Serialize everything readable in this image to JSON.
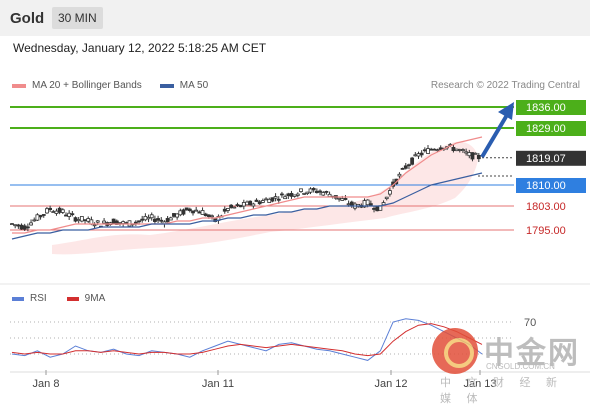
{
  "header": {
    "symbol": "Gold",
    "timeframe": "30 MIN"
  },
  "datetime": "Wednesday, January 12, 2022 5:18:25 AM CET",
  "legend": {
    "items": [
      {
        "label": "MA 20 + Bollinger Bands",
        "color": "#f08c8c"
      },
      {
        "label": "MA 50",
        "color": "#3a5fa0"
      }
    ],
    "credit": "Research © 2022 Trading Central"
  },
  "levels": [
    {
      "label": "1836.00",
      "value": 1836.0,
      "kind": "target",
      "color": "#4caf1a"
    },
    {
      "label": "1829.00",
      "value": 1829.0,
      "kind": "target",
      "color": "#4caf1a"
    },
    {
      "label": "1819.07",
      "value": 1819.07,
      "kind": "last",
      "color": "#333333"
    },
    {
      "label": "1810.00",
      "value": 1810.0,
      "kind": "pivot",
      "color": "#2f7fe0"
    },
    {
      "label": "1803.00",
      "value": 1803.0,
      "kind": "support",
      "color": "#c62828"
    },
    {
      "label": "1795.00",
      "value": 1795.0,
      "kind": "support",
      "color": "#c62828"
    }
  ],
  "rsi_legend": [
    {
      "label": "RSI",
      "color": "#5b7fd6"
    },
    {
      "label": "9MA",
      "color": "#d32f2f"
    }
  ],
  "rsi_level": "70",
  "x_ticks": [
    "Jan 8",
    "Jan 11",
    "Jan 12",
    "Jan 13"
  ],
  "watermark": {
    "cn": "中金网",
    "url": "CNGOLD.COM.CN",
    "sub": "中 文 财 经 新 媒 体"
  },
  "chart_data": {
    "type": "line",
    "series": [
      {
        "name": "MA 20 + Bollinger Bands",
        "values": [
          1794,
          1794,
          1795,
          1795,
          1796,
          1797,
          1797,
          1797,
          1797,
          1797,
          1797,
          1797,
          1797,
          1798,
          1798,
          1799,
          1799,
          1800,
          1801,
          1802,
          1803,
          1804,
          1805,
          1806,
          1806,
          1806,
          1806,
          1806,
          1806,
          1807,
          1810,
          1814,
          1817,
          1820,
          1822,
          1824,
          1825,
          1826
        ]
      },
      {
        "name": "MA 50",
        "values": [
          1792,
          1793,
          1794,
          1794,
          1795,
          1795,
          1795,
          1796,
          1796,
          1796,
          1796,
          1797,
          1797,
          1797,
          1797,
          1798,
          1798,
          1799,
          1799,
          1800,
          1800,
          1801,
          1801,
          1802,
          1802,
          1803,
          1803,
          1803,
          1803,
          1803,
          1804,
          1806,
          1808,
          1810,
          1811,
          1812,
          1813,
          1814
        ]
      }
    ],
    "x": [
      "Jan 8",
      "",
      "",
      "",
      "",
      "",
      "",
      "",
      "",
      "",
      "",
      "",
      "Jan 11",
      "",
      "",
      "",
      "",
      "",
      "",
      "",
      "",
      "",
      "",
      "",
      "",
      "",
      "",
      "",
      "",
      "",
      "",
      "Jan 12",
      "",
      "",
      "",
      "",
      "",
      "Jan 13"
    ],
    "yticks": [
      "1836.00",
      "1829.00",
      "1819.07",
      "1810.00",
      "1803.00",
      "1795.00"
    ],
    "ylim": [
      1785,
      1840
    ],
    "rsi": {
      "level": 70,
      "rsi_values": [
        50,
        49,
        52,
        48,
        50,
        55,
        52,
        51,
        53,
        50,
        49,
        52,
        51,
        50,
        48,
        52,
        55,
        58,
        56,
        54,
        52,
        56,
        57,
        55,
        53,
        52,
        50,
        48,
        46,
        52,
        70,
        72,
        71,
        68,
        64,
        60,
        56,
        50
      ],
      "ma_values": [
        51,
        50,
        51,
        50,
        50,
        52,
        52,
        51,
        52,
        51,
        50,
        51,
        51,
        50,
        50,
        51,
        53,
        55,
        56,
        55,
        54,
        55,
        56,
        55,
        54,
        53,
        52,
        50,
        49,
        50,
        58,
        64,
        68,
        69,
        67,
        64,
        60,
        56
      ]
    },
    "legend_position": "top-left"
  }
}
